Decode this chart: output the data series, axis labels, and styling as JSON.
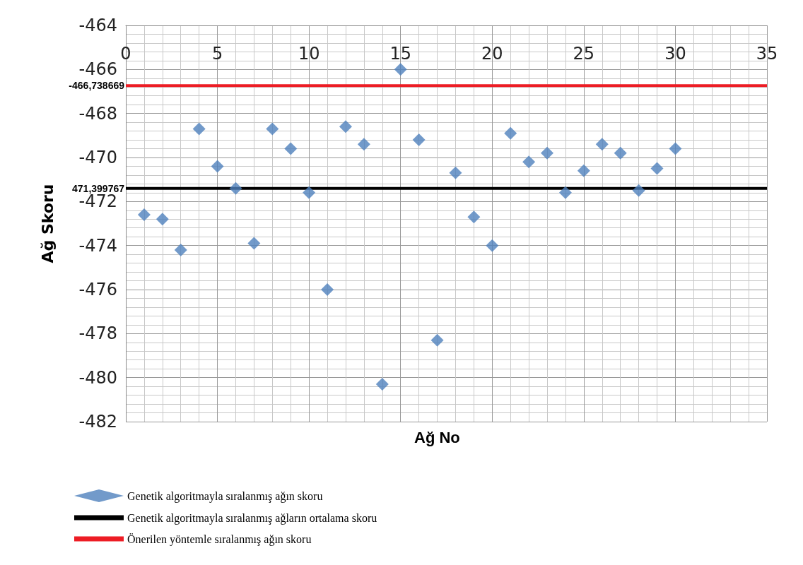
{
  "chart_data": {
    "type": "scatter",
    "xlabel": "Ağ No",
    "ylabel": "Ağ Skoru",
    "xlim": [
      0,
      35
    ],
    "xticks": [
      0,
      5,
      10,
      15,
      20,
      25,
      30,
      35
    ],
    "ylim": [
      -482,
      -464
    ],
    "yticks": [
      -482,
      -480,
      -478,
      -476,
      -474,
      -472,
      -470,
      -468,
      -466,
      -464
    ],
    "grid": true,
    "legend": "bottom",
    "marker": "diamond",
    "series": [
      {
        "name": "Genetik algoritmayla sıralanmış ağın skoru",
        "color": "#4f81bd",
        "x": [
          1,
          2,
          3,
          4,
          5,
          6,
          7,
          8,
          9,
          10,
          11,
          12,
          13,
          14,
          15,
          16,
          17,
          18,
          19,
          20,
          21,
          22,
          23,
          24,
          25,
          26,
          27,
          28,
          29,
          30
        ],
        "values": [
          -472.6,
          -472.8,
          -474.2,
          -468.7,
          -470.4,
          -471.4,
          -473.9,
          -468.7,
          -469.6,
          -471.6,
          -476.0,
          -468.6,
          -469.4,
          -480.3,
          -466.0,
          -469.2,
          -478.3,
          -470.7,
          -472.7,
          -474.0,
          -468.9,
          -470.2,
          -469.8,
          -471.6,
          -470.6,
          -469.4,
          -469.8,
          -471.5,
          -470.5,
          -469.6
        ]
      },
      {
        "type": "line",
        "name": "Genetik algoritmayla sıralanmış ağların ortalama skoru",
        "color": "#000000",
        "marker": "none",
        "x": [
          0,
          35
        ],
        "values": [
          -471.399767,
          -471.399767
        ],
        "value_labels": [
          "471,399767",
          null
        ]
      },
      {
        "type": "line",
        "name": "Önerilen yöntemle sıralanmış ağın skoru",
        "color": "#ed1c24",
        "marker": "none",
        "x": [
          0,
          35
        ],
        "values": [
          -466.738669,
          -466.738669
        ],
        "value_labels": [
          "-466,738669",
          null
        ]
      }
    ]
  }
}
